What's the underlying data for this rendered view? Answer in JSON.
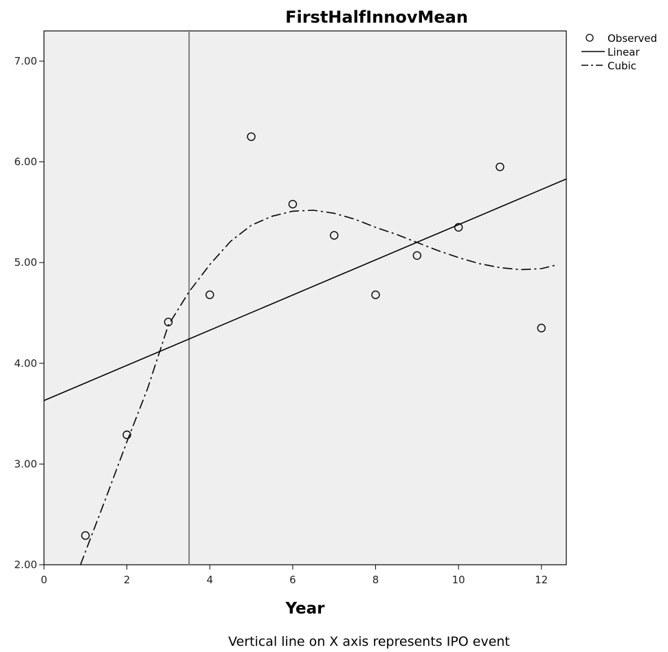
{
  "chart_data": {
    "type": "scatter",
    "title": "FirstHalfInnovMean",
    "xlabel": "Year",
    "ylabel": "",
    "xlim": [
      0,
      12.6
    ],
    "ylim": [
      2.0,
      7.3
    ],
    "x_ticks": [
      0,
      2,
      4,
      6,
      8,
      10,
      12
    ],
    "x_tick_labels": [
      "0",
      "2",
      "4",
      "6",
      "8",
      "10",
      "12"
    ],
    "y_ticks": [
      2,
      3,
      4,
      5,
      6,
      7
    ],
    "y_tick_labels": [
      "2.00",
      "3.00",
      "4.00",
      "5.00",
      "6.00",
      "7.00"
    ],
    "grid": false,
    "background": "#efefef",
    "legend_position": "top-right",
    "legend": [
      "Observed",
      "Linear",
      "Cubic"
    ],
    "series": [
      {
        "name": "Observed",
        "kind": "points",
        "marker": "open-circle",
        "x": [
          1,
          2,
          3,
          4,
          5,
          6,
          7,
          8,
          9,
          10,
          11,
          12
        ],
        "y": [
          2.29,
          3.29,
          4.41,
          4.68,
          6.25,
          5.58,
          5.27,
          4.68,
          5.07,
          5.35,
          5.95,
          4.35
        ]
      },
      {
        "name": "Linear",
        "kind": "line",
        "style": "solid",
        "x": [
          0,
          12.6
        ],
        "y": [
          3.63,
          5.83
        ]
      },
      {
        "name": "Cubic",
        "kind": "line",
        "style": "dash-dot",
        "x": [
          0.88,
          1.5,
          2,
          2.5,
          3,
          3.5,
          4,
          4.5,
          5,
          5.5,
          6,
          6.5,
          7,
          7.5,
          8,
          8.5,
          9,
          9.5,
          10,
          10.5,
          11,
          11.5,
          12,
          12.4
        ],
        "y": [
          2.0,
          2.67,
          3.22,
          3.75,
          4.38,
          4.71,
          4.98,
          5.21,
          5.37,
          5.46,
          5.51,
          5.52,
          5.49,
          5.43,
          5.35,
          5.28,
          5.2,
          5.12,
          5.05,
          4.99,
          4.95,
          4.93,
          4.94,
          4.98
        ]
      }
    ],
    "reference_line": {
      "axis": "x",
      "value": 3.5,
      "color": "#808080"
    },
    "footnote": "Vertical line on X axis represents IPO event"
  }
}
